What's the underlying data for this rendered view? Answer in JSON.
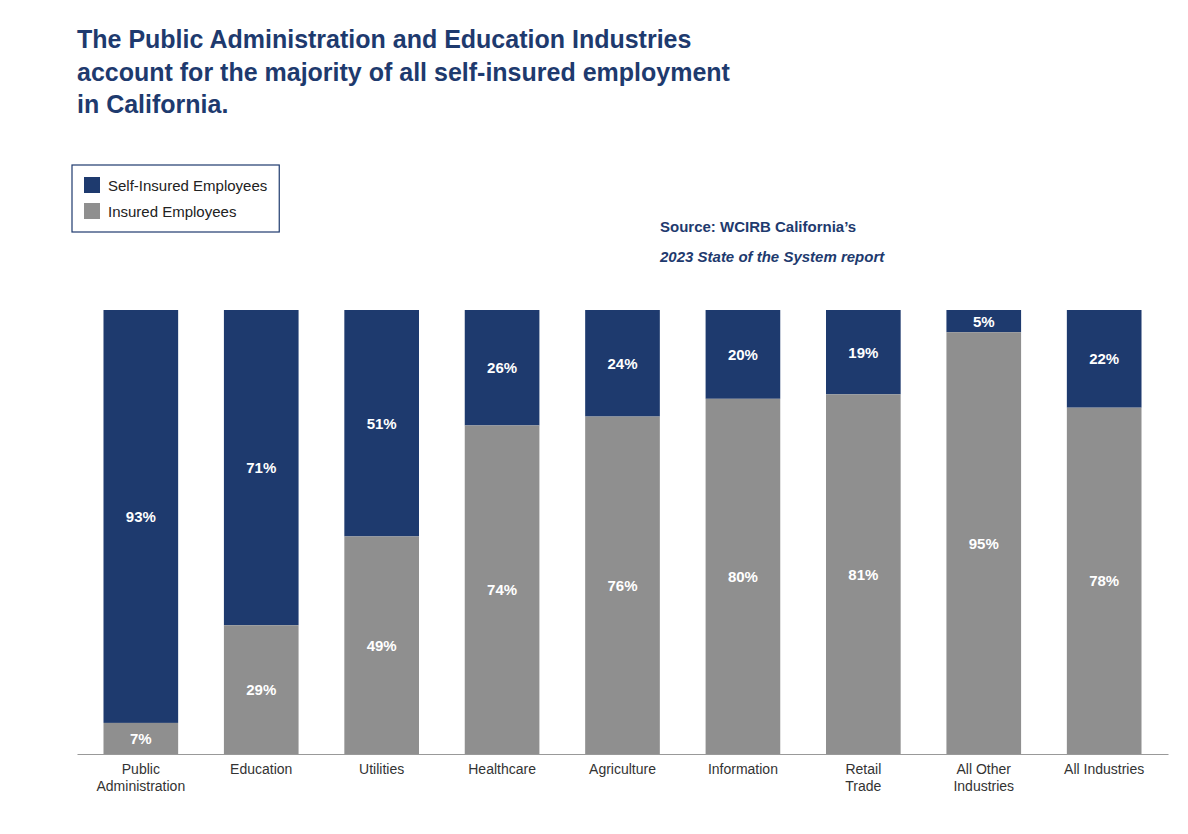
{
  "chart_data": {
    "type": "bar",
    "title": "The Public Administration and Education Industries\naccount for the majority of all self-insured employment\nin California.",
    "annotations": [
      "Source: WCIRB California’s",
      "2023 State of the System report"
    ],
    "categories": [
      "Public\nAdministration",
      "Education",
      "Utilities",
      "Healthcare",
      "Agriculture",
      "Information",
      "Retail\nTrade",
      "All Other\nIndustries",
      "All Industries"
    ],
    "series": [
      {
        "name": "Self-Insured Employees",
        "color": "#1e3a6e",
        "values": [
          93,
          71,
          51,
          26,
          24,
          20,
          19,
          5,
          22
        ],
        "value_labels": [
          "93%",
          "71%",
          "51%",
          "26%",
          "24%",
          "20%",
          "19%",
          "5%",
          "22%"
        ]
      },
      {
        "name": "Insured Employees",
        "color": "#8f8f8f",
        "values": [
          7,
          29,
          49,
          74,
          76,
          80,
          81,
          95,
          78
        ],
        "value_labels": [
          "7%",
          "29%",
          "49%",
          "74%",
          "76%",
          "80%",
          "81%",
          "95%",
          "78%"
        ]
      }
    ],
    "ylim": [
      0,
      100
    ],
    "stacked": true,
    "data_labels": true,
    "tick_labels": "x",
    "grid": false,
    "legend": "upper left"
  }
}
